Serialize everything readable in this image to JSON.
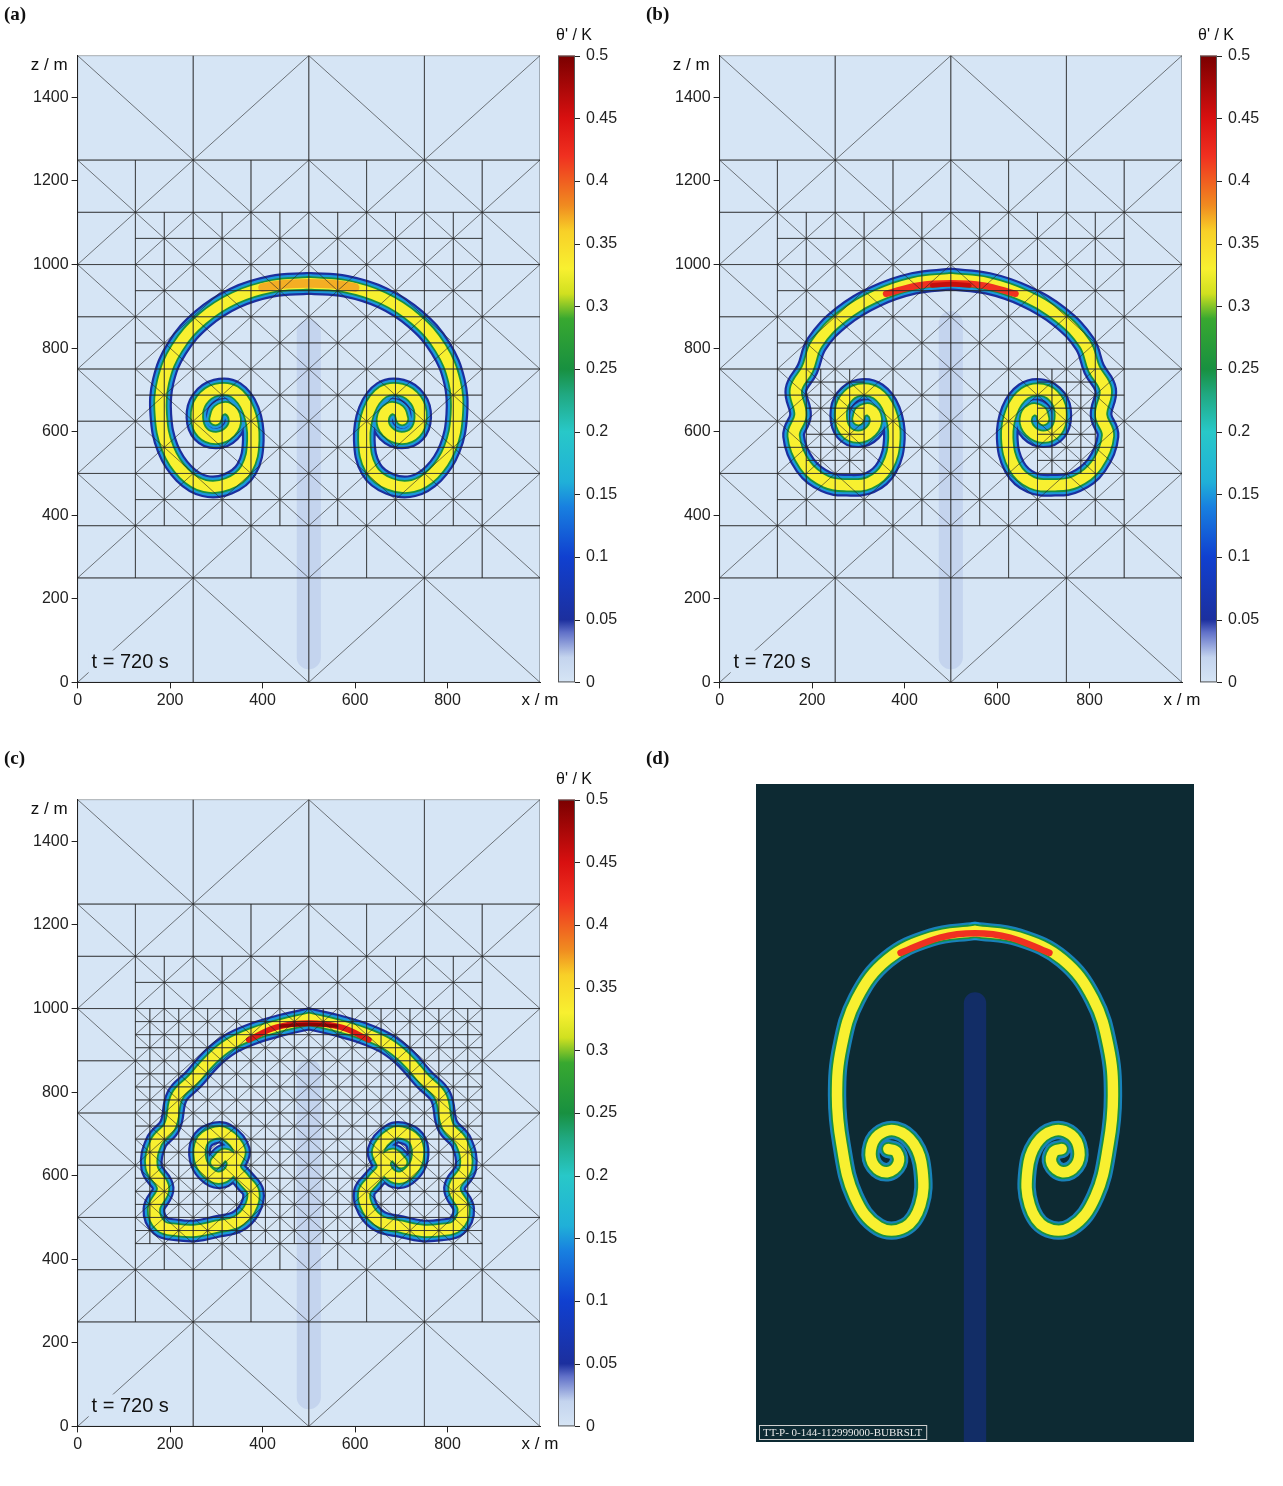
{
  "chart_data": [
    {
      "panel": "(a)",
      "type": "field",
      "annotation": "t = 720 s",
      "x_label": "x / m",
      "y_label": "z / m",
      "xlim": [
        0,
        1000
      ],
      "ylim": [
        0,
        1500
      ],
      "xticks": [
        0,
        200,
        400,
        600,
        800
      ],
      "yticks": [
        0,
        200,
        400,
        600,
        800,
        1000,
        1200,
        1400
      ],
      "colorbar": {
        "label": "θ' / K",
        "range": [
          0,
          0.5
        ],
        "ticks": [
          0,
          0.05,
          0.1,
          0.15,
          0.2,
          0.25,
          0.3,
          0.35,
          0.4,
          0.45,
          0.5
        ]
      },
      "mesh": [
        {
          "xlim": [
            0,
            1000
          ],
          "zlim": [
            0,
            1500
          ],
          "cell": 250
        },
        {
          "xlim": [
            0,
            1000
          ],
          "zlim": [
            250,
            1250
          ],
          "cell": 125
        },
        {
          "xlim": [
            125,
            875
          ],
          "zlim": [
            375,
            1125
          ],
          "cell": 62.5
        }
      ],
      "structures": [
        {
          "levels": [
            0.02
          ],
          "x": [
            500,
            500,
            500
          ],
          "z": [
            60,
            400,
            840
          ]
        },
        {
          "levels": [
            0.05,
            0.15,
            0.25,
            0.33
          ],
          "x": [
            500,
            420,
            340,
            270,
            215,
            185,
            180,
            195,
            230,
            275,
            325,
            365,
            380,
            370,
            340,
            300,
            268,
            258,
            270,
            300,
            330,
            340,
            325,
            305,
            298
          ],
          "z": [
            955,
            948,
            920,
            870,
            800,
            720,
            640,
            560,
            500,
            470,
            475,
            510,
            580,
            650,
            695,
            700,
            675,
            635,
            598,
            585,
            600,
            630,
            655,
            650,
            630
          ]
        },
        {
          "levels": [
            0.05,
            0.15,
            0.25,
            0.33
          ],
          "x": [
            500,
            580,
            660,
            730,
            785,
            815,
            820,
            805,
            770,
            725,
            675,
            635,
            620,
            630,
            660,
            700,
            732,
            742,
            730,
            700,
            670,
            660,
            675,
            695,
            702
          ],
          "z": [
            955,
            948,
            920,
            870,
            800,
            720,
            640,
            560,
            500,
            470,
            475,
            510,
            580,
            650,
            695,
            700,
            675,
            635,
            598,
            585,
            600,
            630,
            655,
            650,
            630
          ]
        },
        {
          "levels": [
            0.37
          ],
          "x": [
            400,
            450,
            500,
            550,
            600
          ],
          "z": [
            945,
            953,
            955,
            953,
            945
          ]
        }
      ]
    },
    {
      "panel": "(b)",
      "type": "field",
      "annotation": "t = 720 s",
      "x_label": "x / m",
      "y_label": "z / m",
      "xlim": [
        0,
        1000
      ],
      "ylim": [
        0,
        1500
      ],
      "xticks": [
        0,
        200,
        400,
        600,
        800
      ],
      "yticks": [
        0,
        200,
        400,
        600,
        800,
        1000,
        1200,
        1400
      ],
      "colorbar": {
        "label": "θ' / K",
        "range": [
          0,
          0.5
        ],
        "ticks": [
          0,
          0.05,
          0.1,
          0.15,
          0.2,
          0.25,
          0.3,
          0.35,
          0.4,
          0.45,
          0.5
        ]
      },
      "mesh": [
        {
          "xlim": [
            0,
            1000
          ],
          "zlim": [
            0,
            1500
          ],
          "cell": 250
        },
        {
          "xlim": [
            0,
            1000
          ],
          "zlim": [
            250,
            1250
          ],
          "cell": 125
        },
        {
          "xlim": [
            125,
            875
          ],
          "zlim": [
            375,
            1125
          ],
          "cell": 62.5
        },
        {
          "xlim": [
            187.5,
            312.5
          ],
          "zlim": [
            500,
            750
          ],
          "cell": 31.25
        },
        {
          "xlim": [
            687.5,
            812.5
          ],
          "zlim": [
            500,
            750
          ],
          "cell": 31.25
        }
      ],
      "structures": [
        {
          "levels": [
            0.02
          ],
          "x": [
            500,
            500,
            500
          ],
          "z": [
            60,
            400,
            860
          ]
        },
        {
          "levels": [
            0.05,
            0.15,
            0.25,
            0.33
          ],
          "x": [
            500,
            420,
            340,
            265,
            210,
            190,
            165,
            175,
            160,
            185,
            230,
            275,
            325,
            362,
            378,
            368,
            340,
            302,
            272,
            262,
            272,
            300,
            328,
            338,
            325,
            306,
            300
          ],
          "z": [
            965,
            955,
            925,
            875,
            810,
            750,
            700,
            640,
            590,
            520,
            480,
            472,
            478,
            515,
            585,
            650,
            692,
            700,
            678,
            640,
            602,
            588,
            602,
            630,
            652,
            648,
            630
          ]
        },
        {
          "levels": [
            0.05,
            0.15,
            0.25,
            0.33
          ],
          "x": [
            500,
            580,
            660,
            735,
            790,
            810,
            835,
            825,
            840,
            815,
            770,
            725,
            675,
            638,
            622,
            632,
            660,
            698,
            728,
            738,
            728,
            700,
            672,
            662,
            675,
            694,
            700
          ],
          "z": [
            965,
            955,
            925,
            875,
            810,
            750,
            700,
            640,
            590,
            520,
            480,
            472,
            478,
            515,
            585,
            650,
            692,
            700,
            678,
            640,
            602,
            588,
            602,
            630,
            652,
            648,
            630
          ]
        },
        {
          "levels": [
            0.42
          ],
          "x": [
            360,
            430,
            500,
            570,
            640
          ],
          "z": [
            930,
            950,
            955,
            950,
            930
          ]
        },
        {
          "levels": [
            0.46
          ],
          "x": [
            460,
            500,
            540
          ],
          "z": [
            950,
            953,
            950
          ]
        }
      ]
    },
    {
      "panel": "(c)",
      "type": "field",
      "annotation": "t = 720 s",
      "x_label": "x / m",
      "y_label": "z / m",
      "xlim": [
        0,
        1000
      ],
      "ylim": [
        0,
        1500
      ],
      "xticks": [
        0,
        200,
        400,
        600,
        800
      ],
      "yticks": [
        0,
        200,
        400,
        600,
        800,
        1000,
        1200,
        1400
      ],
      "colorbar": {
        "label": "θ' / K",
        "range": [
          0,
          0.5
        ],
        "ticks": [
          0,
          0.05,
          0.1,
          0.15,
          0.2,
          0.25,
          0.3,
          0.35,
          0.4,
          0.45,
          0.5
        ]
      },
      "mesh": [
        {
          "xlim": [
            0,
            1000
          ],
          "zlim": [
            0,
            1500
          ],
          "cell": 250
        },
        {
          "xlim": [
            0,
            1000
          ],
          "zlim": [
            250,
            1250
          ],
          "cell": 125
        },
        {
          "xlim": [
            125,
            875
          ],
          "zlim": [
            375,
            1125
          ],
          "cell": 62.5
        },
        {
          "xlim": [
            125,
            875
          ],
          "zlim": [
            437.5,
            1000
          ],
          "cell": 31.25
        }
      ],
      "structures": [
        {
          "levels": [
            0.02
          ],
          "x": [
            500,
            500,
            500
          ],
          "z": [
            70,
            400,
            850
          ]
        },
        {
          "levels": [
            0.05,
            0.15,
            0.25,
            0.33
          ],
          "x": [
            500,
            440,
            380,
            330,
            290,
            250,
            215,
            200,
            170,
            160,
            185,
            165,
            180,
            215,
            255,
            300,
            345,
            372,
            380,
            360,
            340,
            350,
            320,
            290,
            268,
            265,
            280,
            305,
            330,
            335,
            318,
            300
          ],
          "z": [
            975,
            960,
            940,
            915,
            880,
            830,
            790,
            720,
            680,
            620,
            570,
            520,
            480,
            470,
            468,
            478,
            490,
            520,
            560,
            590,
            620,
            660,
            700,
            700,
            680,
            640,
            610,
            595,
            610,
            635,
            650,
            632
          ]
        },
        {
          "levels": [
            0.05,
            0.15,
            0.25,
            0.33
          ],
          "x": [
            500,
            560,
            620,
            670,
            710,
            750,
            785,
            800,
            830,
            840,
            815,
            835,
            820,
            785,
            745,
            700,
            655,
            628,
            620,
            640,
            660,
            650,
            680,
            710,
            732,
            735,
            720,
            695,
            670,
            665,
            682,
            700
          ],
          "z": [
            975,
            960,
            940,
            915,
            880,
            830,
            790,
            720,
            680,
            620,
            570,
            520,
            480,
            470,
            468,
            478,
            490,
            520,
            560,
            590,
            620,
            660,
            700,
            700,
            680,
            640,
            610,
            595,
            610,
            635,
            650,
            632
          ]
        },
        {
          "levels": [
            0.44
          ],
          "x": [
            370,
            430,
            500,
            570,
            630
          ],
          "z": [
            925,
            955,
            965,
            955,
            925
          ]
        },
        {
          "levels": [
            0.49
          ],
          "x": [
            440,
            500,
            560
          ],
          "z": [
            958,
            962,
            958
          ]
        }
      ]
    },
    {
      "panel": "(d)",
      "type": "image",
      "tick_labels": false,
      "caption": "TT-P- 0-144-112999000-BUBRSLT",
      "xlim": [
        0,
        1000
      ],
      "ylim": [
        0,
        1500
      ],
      "structures": [
        {
          "levels": [
            0.06
          ],
          "x": [
            500,
            500
          ],
          "z": [
            0,
            1000
          ]
        },
        {
          "levels": [
            0.15,
            0.25,
            0.33
          ],
          "x": [
            500,
            400,
            300,
            230,
            195,
            185,
            195,
            225,
            280,
            340,
            375,
            380,
            360,
            320,
            280,
            262,
            270,
            300,
            325,
            320,
            302
          ],
          "z": [
            1165,
            1150,
            1100,
            1010,
            900,
            790,
            680,
            560,
            490,
            490,
            540,
            620,
            680,
            710,
            700,
            665,
            630,
            615,
            635,
            662,
            668
          ]
        },
        {
          "levels": [
            0.15,
            0.25,
            0.33
          ],
          "x": [
            500,
            600,
            700,
            770,
            805,
            815,
            805,
            775,
            720,
            660,
            625,
            620,
            640,
            680,
            720,
            738,
            730,
            700,
            675,
            680,
            698
          ],
          "z": [
            1165,
            1150,
            1100,
            1010,
            900,
            790,
            680,
            560,
            490,
            490,
            540,
            620,
            680,
            710,
            700,
            665,
            630,
            615,
            635,
            662,
            668
          ]
        },
        {
          "levels": [
            0.42
          ],
          "x": [
            330,
            420,
            500,
            580,
            670
          ],
          "z": [
            1115,
            1150,
            1160,
            1150,
            1115
          ]
        }
      ]
    }
  ]
}
